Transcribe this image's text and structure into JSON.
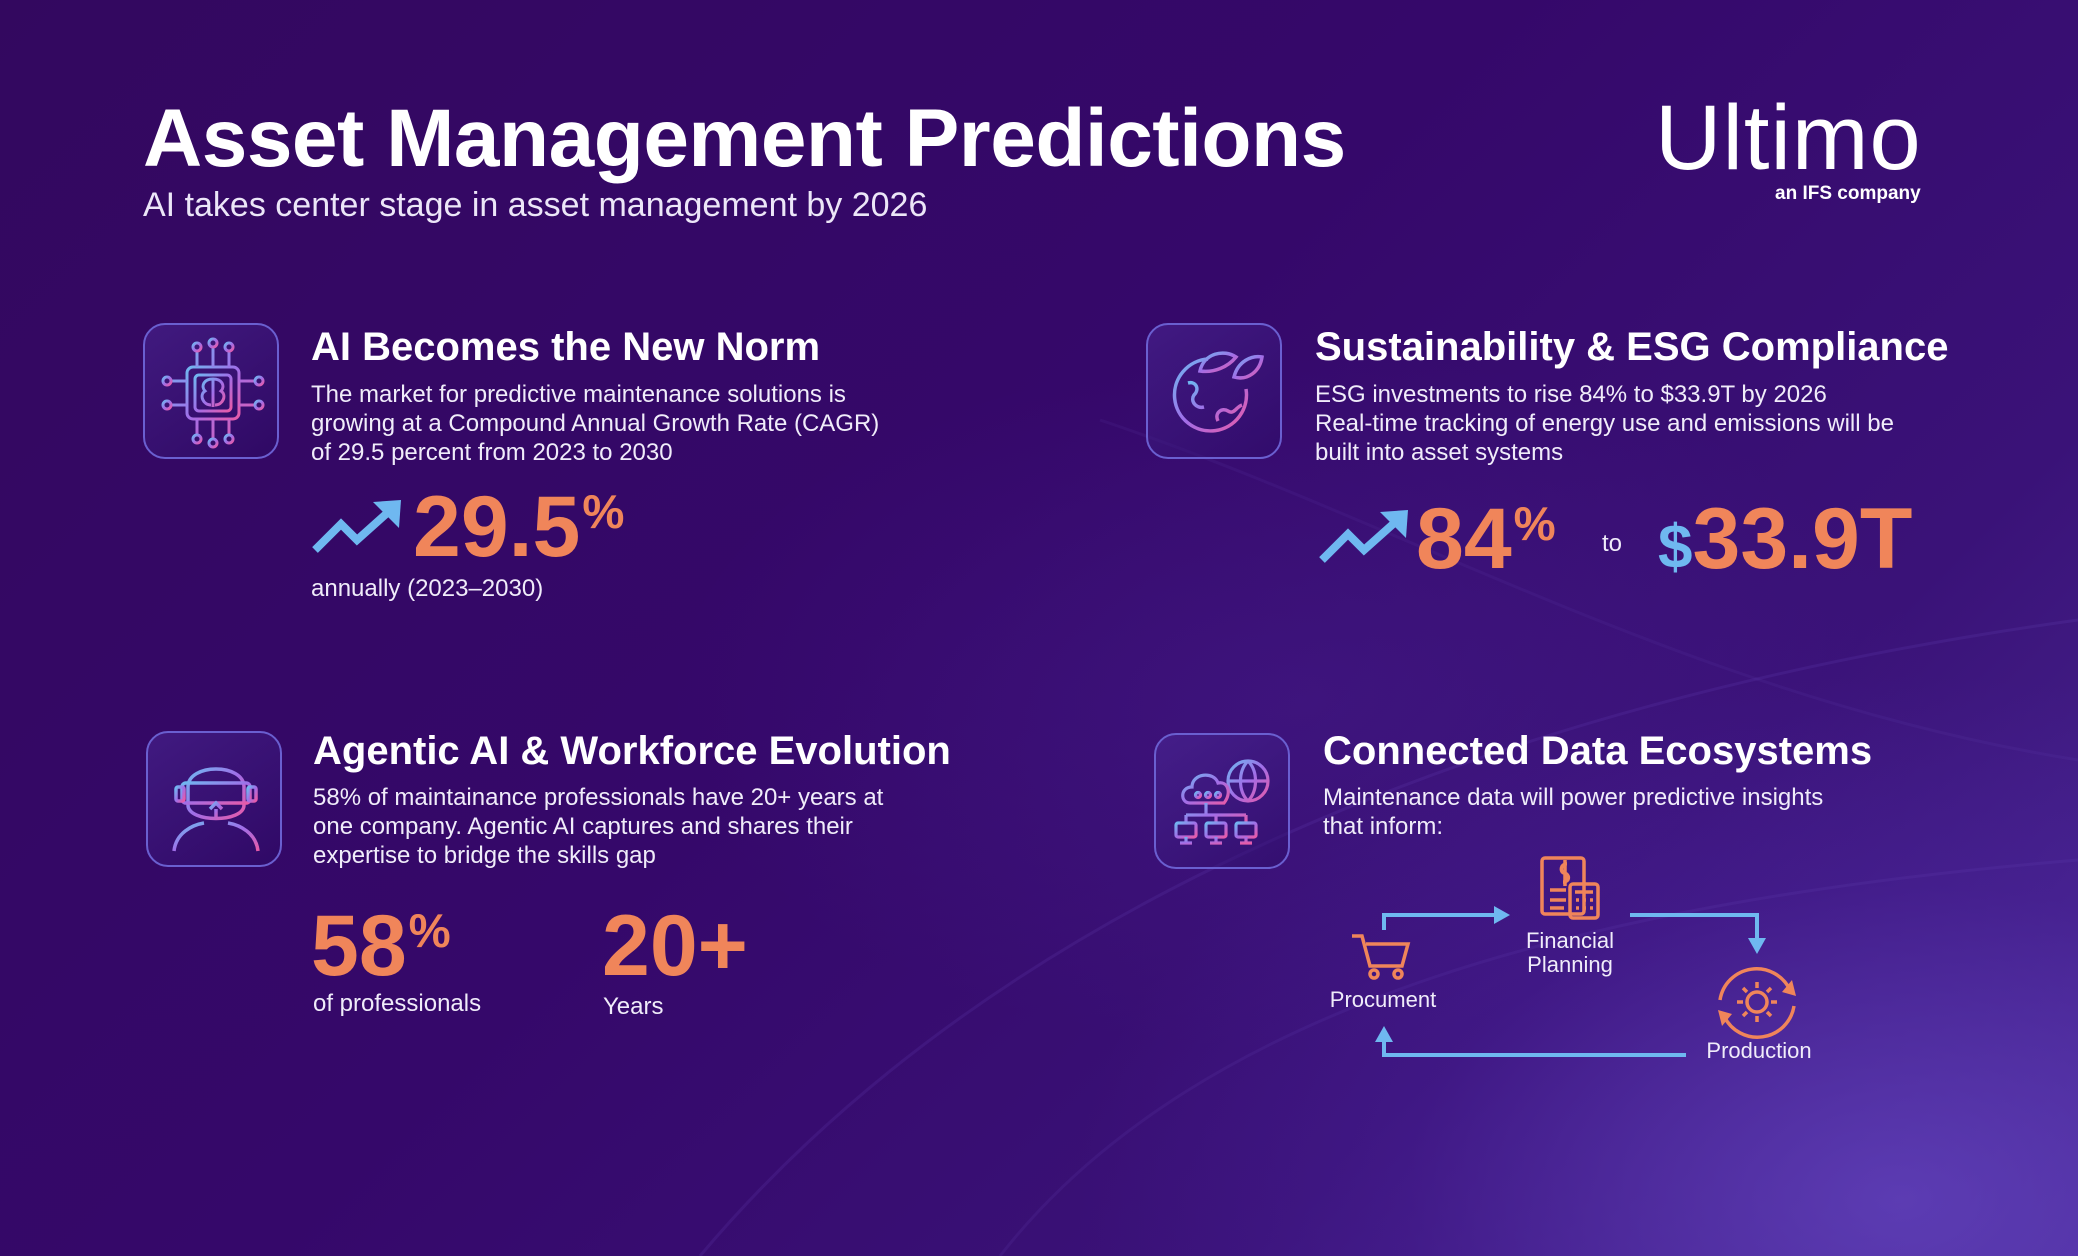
{
  "header": {
    "title": "Asset Management Predictions",
    "subtitle": "AI takes center stage in asset management by 2026",
    "logo_name": "Ultimo",
    "logo_tagline": "an IFS company"
  },
  "colors": {
    "background": "#35086a",
    "accent_orange": "#f0855a",
    "accent_blue": "#6fb8f0",
    "icon_border": "#6a5fd0"
  },
  "sections": {
    "ai_norm": {
      "icon": "ai-brain-chip-icon",
      "title": "AI Becomes the New Norm",
      "body_lines": [
        "The market for predictive maintenance solutions is",
        "growing at a Compound Annual Growth Rate (CAGR)",
        "of 29.5 percent from 2023 to 2030"
      ],
      "stat_icon": "trend-up-arrow-icon",
      "stat_value": "29.5",
      "stat_unit": "%",
      "stat_caption": "annually (2023–2030)"
    },
    "sustainability": {
      "icon": "earth-leaf-icon",
      "title": "Sustainability & ESG Compliance",
      "body_lines": [
        "ESG investments to rise 84% to $33.9T by 2026",
        "Real-time tracking of energy use and emissions will be",
        "built into asset systems"
      ],
      "stat_icon": "trend-up-arrow-icon",
      "stat_value": "84",
      "stat_unit": "%",
      "connector": "to",
      "amount_symbol": "$",
      "amount_value": "33.9T"
    },
    "agentic": {
      "icon": "vr-headset-person-icon",
      "title": "Agentic AI & Workforce Evolution",
      "body_lines": [
        "58% of  maintainance professionals have 20+ years at",
        "one company. Agentic AI captures and shares their",
        "expertise to bridge the skills gap"
      ],
      "stat1_value": "58",
      "stat1_unit": "%",
      "stat1_caption": "of professionals",
      "stat2_value": "20+",
      "stat2_caption": "Years"
    },
    "connected": {
      "icon": "cloud-network-globe-icon",
      "title": "Connected Data Ecosystems",
      "body_lines": [
        "Maintenance data will power predictive insights",
        "that inform:"
      ],
      "cycle": {
        "procurement_label": "Procument",
        "financial_label_line1": "Financial",
        "financial_label_line2": "Planning",
        "production_label": "Production",
        "procurement_icon": "shopping-cart-icon",
        "financial_icon": "calculator-document-icon",
        "production_icon": "gear-cycle-icon"
      }
    }
  }
}
